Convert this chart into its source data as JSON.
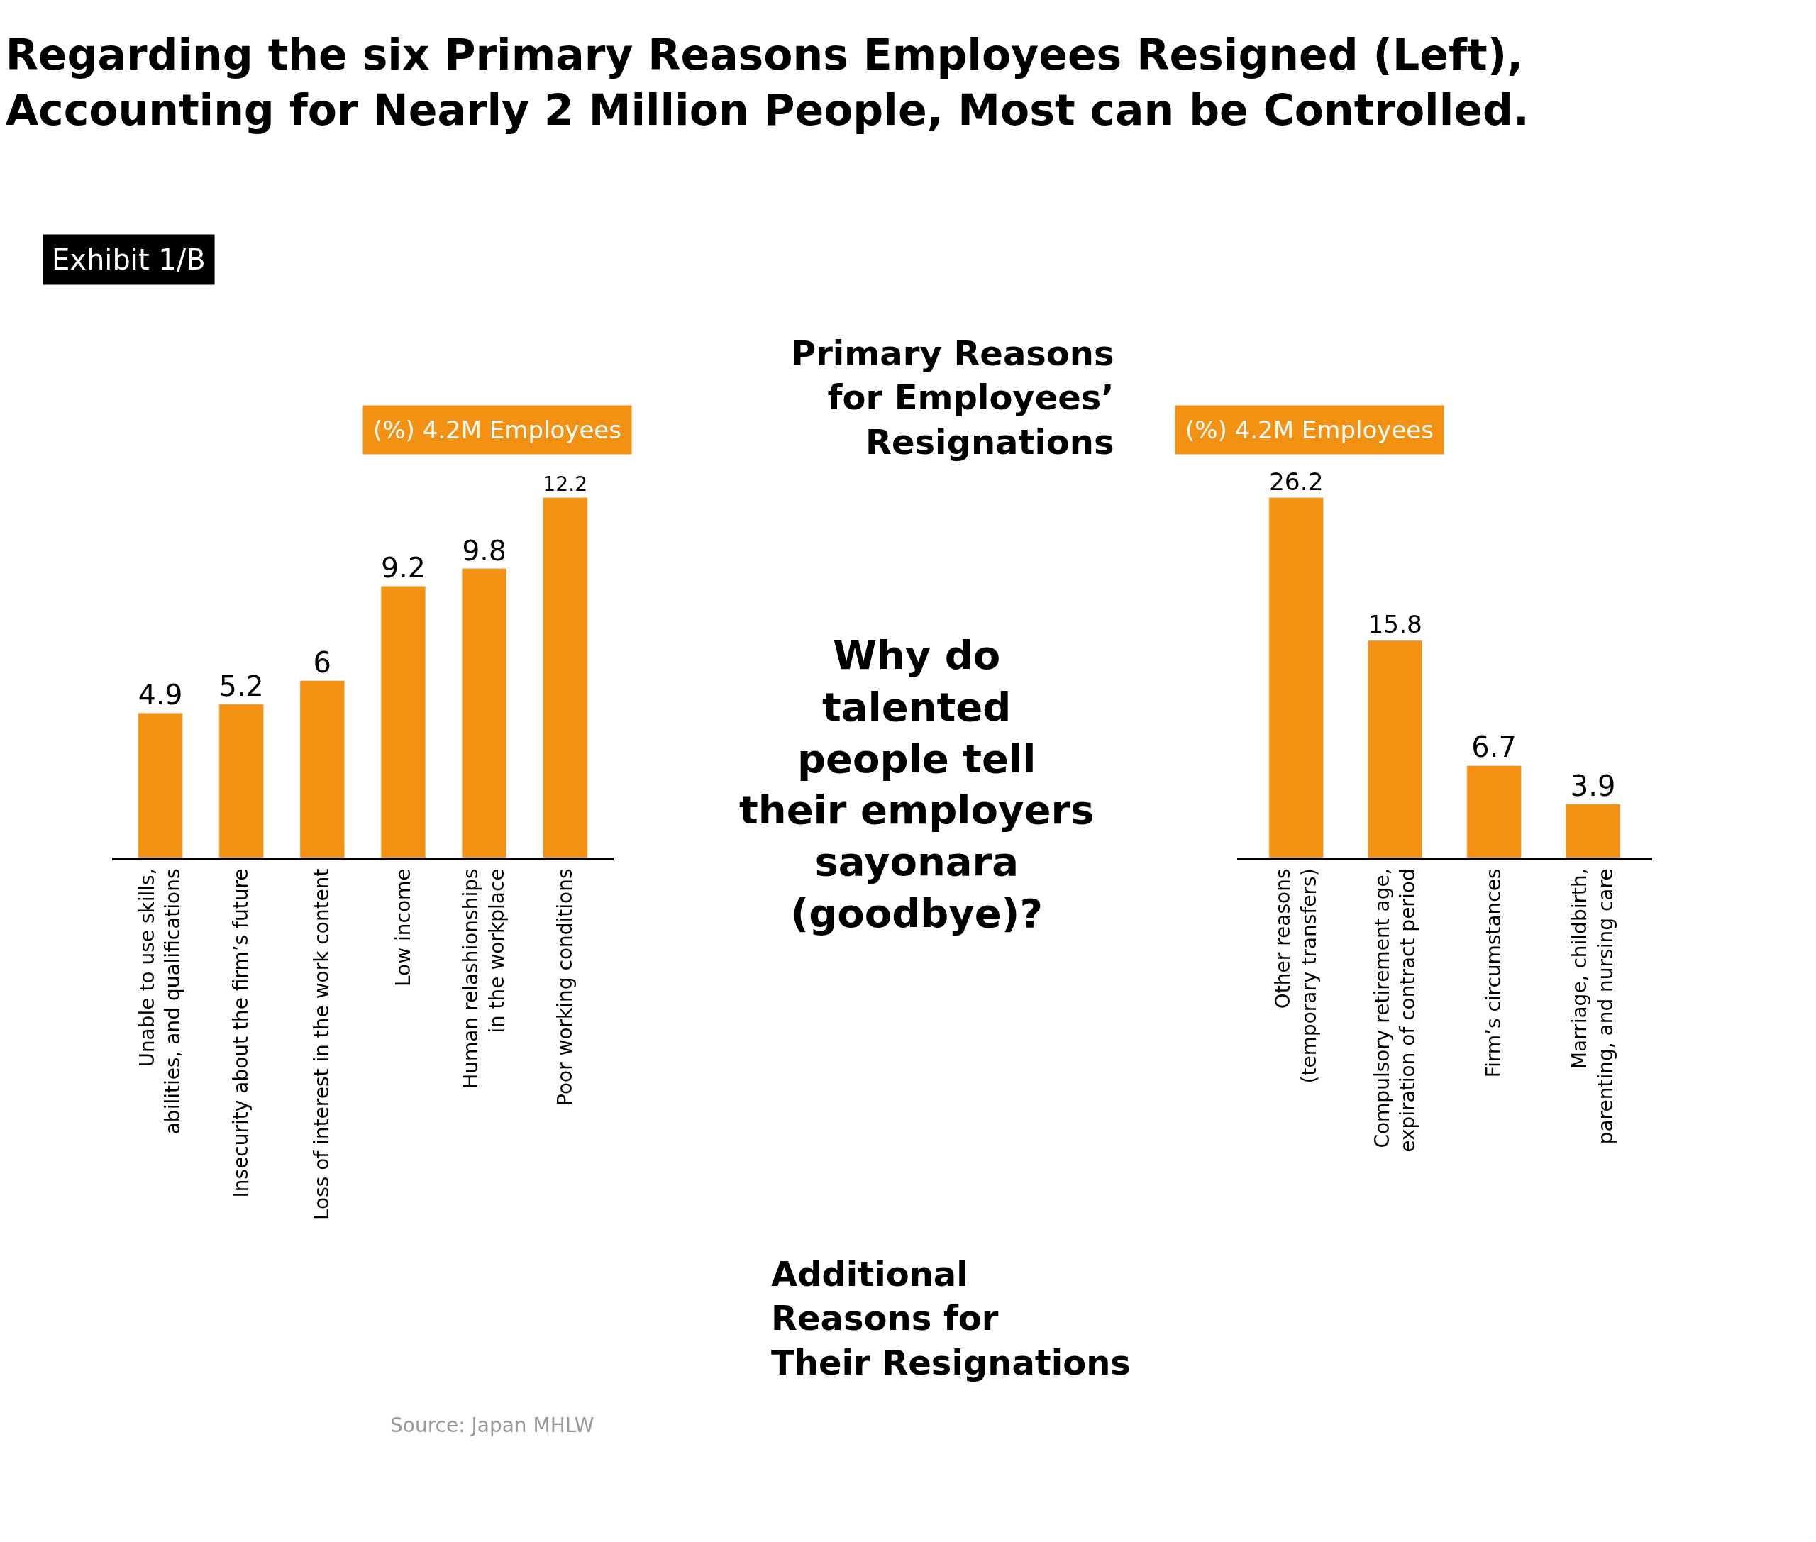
{
  "chart_data": [
    {
      "type": "bar",
      "title": "Regarding the six Primary Reasons Employees Resigned (Left),\nAccounting for Nearly 2 Million People, Most can be Controlled.",
      "subtitle": "(%) 4.2M Employees",
      "categories": [
        "Unable to use skills,\nabilities, and qualifications",
        "Insecurity about the firm’s future",
        "Loss of interest in the work content",
        "Low income",
        "Human relashionships\nin the workplace",
        "Poor working conditions"
      ],
      "values": [
        4.9,
        5.2,
        6,
        9.2,
        9.8,
        12.2
      ],
      "color": "#f39212",
      "data_labels": true,
      "tick_labels": "x",
      "annotations": [
        "Exhibit 1/B",
        "Primary Reasons\nfor Employees’\nResignations",
        "Why do\ntalented\npeople tell\ntheir employers\nsayonara\n(goodbye)?",
        "Source: Japan MHLW"
      ]
    },
    {
      "type": "bar",
      "subtitle": "(%) 4.2M Employees",
      "categories": [
        "Other reasons\n(temporary transfers)",
        "Compulsory retirement age,\nexpiration of contract period",
        "Firm’s circumstances",
        "Marriage, childbirth,\nparenting, and nursing care"
      ],
      "values": [
        26.2,
        15.8,
        6.7,
        3.9
      ],
      "color": "#f39212",
      "data_labels": true,
      "tick_labels": "x",
      "annotations": [
        "Additional\nReasons for\nTheir Resignations"
      ]
    }
  ]
}
